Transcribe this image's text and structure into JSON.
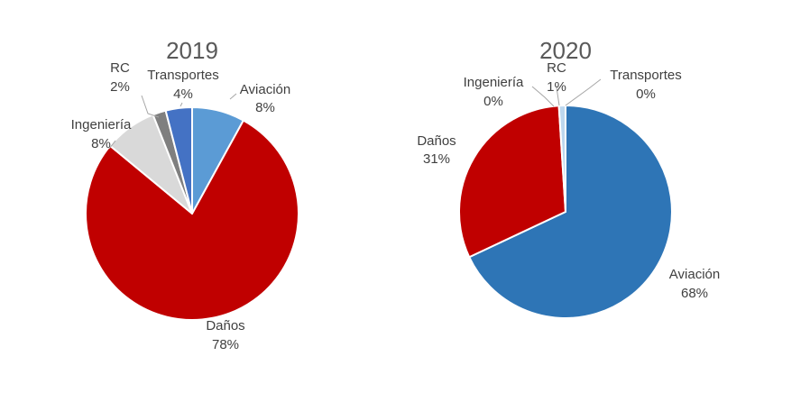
{
  "chart_data": [
    {
      "type": "pie",
      "title": "2019",
      "colors": [
        "#5b9bd5",
        "#c00000",
        "#d9d9d9",
        "#7f7f7f",
        "#4472c4"
      ],
      "slices": [
        {
          "label": "Aviación",
          "value": 8,
          "value_label": "8%"
        },
        {
          "label": "Daños",
          "value": 78,
          "value_label": "78%"
        },
        {
          "label": "Ingeniería",
          "value": 8,
          "value_label": "8%"
        },
        {
          "label": "RC",
          "value": 2,
          "value_label": "2%"
        },
        {
          "label": "Transportes",
          "value": 4,
          "value_label": "4%"
        }
      ]
    },
    {
      "type": "pie",
      "title": "2020",
      "colors": [
        "#2e75b6",
        "#c00000",
        "#d9d9d9",
        "#bdd7ee",
        "#5b9bd5"
      ],
      "slices": [
        {
          "label": "Aviación",
          "value": 68,
          "value_label": "68%"
        },
        {
          "label": "Daños",
          "value": 31,
          "value_label": "31%"
        },
        {
          "label": "Ingeniería",
          "value": 0,
          "value_label": "0%"
        },
        {
          "label": "RC",
          "value": 1,
          "value_label": "1%"
        },
        {
          "label": "Transportes",
          "value": 0,
          "value_label": "0%"
        }
      ]
    }
  ]
}
